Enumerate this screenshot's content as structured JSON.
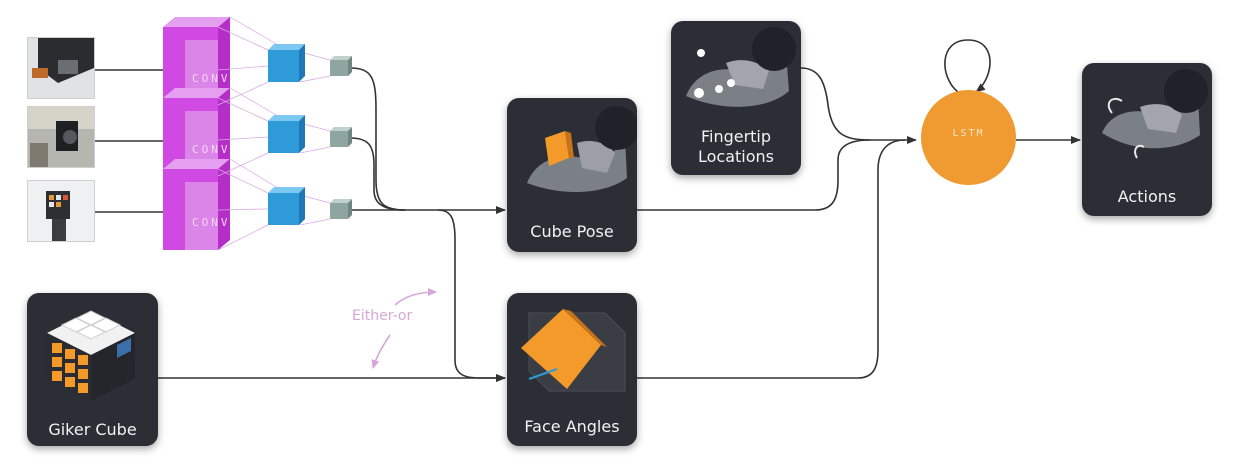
{
  "nodes": {
    "conv_label": "CONV",
    "lstm_label": "LSTM",
    "cube_pose": "Cube Pose",
    "fingertip_locations": [
      "Fingertip",
      "Locations"
    ],
    "face_angles": "Face Angles",
    "giker_cube": "Giker Cube",
    "actions": "Actions"
  },
  "annotation": {
    "either_or": "Either-or"
  },
  "colors": {
    "conv": "#cc3fe0",
    "conv_light": "#e7b6ee",
    "encoder": "#2f9ad8",
    "pool": "#8fa5a0",
    "lstm": "#f09a32",
    "box_bg": "#2b2e35",
    "cube_face": "#f39a2a",
    "arrow": "#333333",
    "either_or": "#d6a6d8"
  }
}
